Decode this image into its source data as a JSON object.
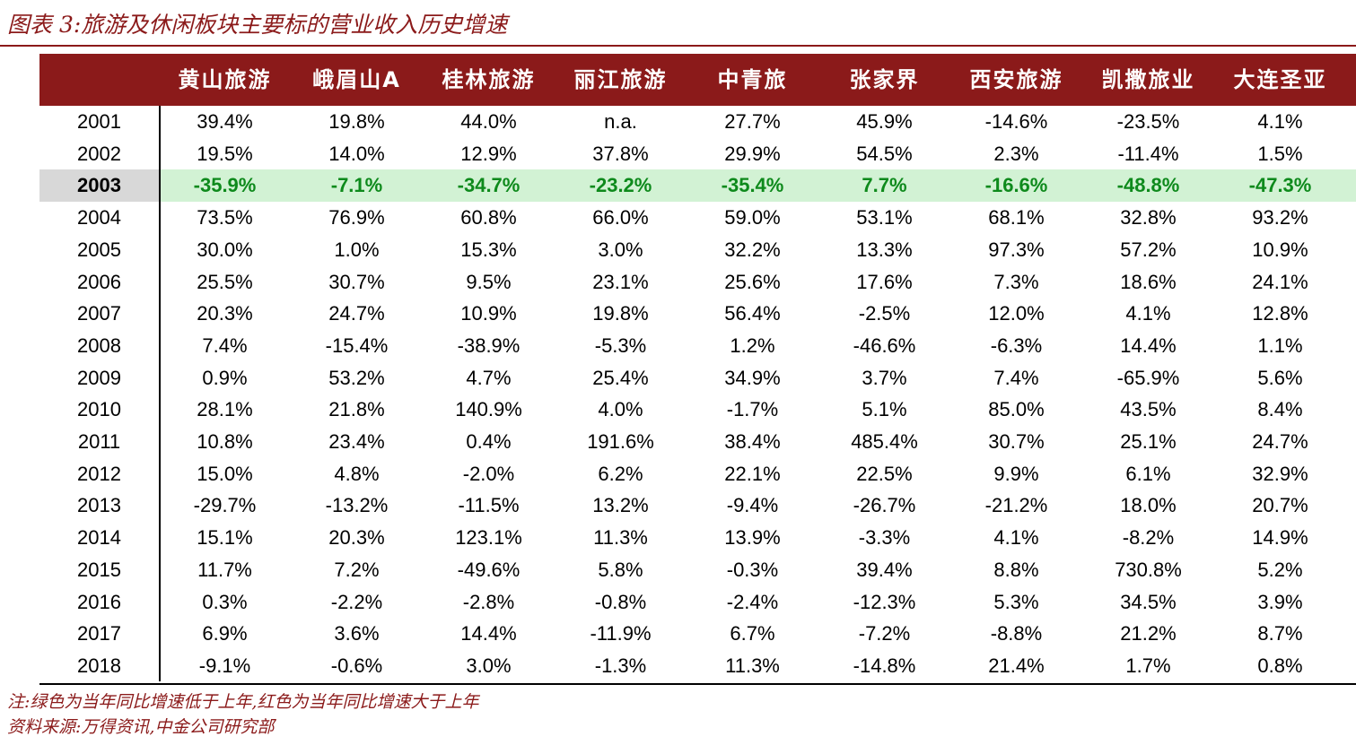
{
  "title": "图表 3:旅游及休闲板块主要标的营业收入历史增速",
  "columns": [
    "黄山旅游",
    "峨眉山A",
    "桂林旅游",
    "丽江旅游",
    "中青旅",
    "张家界",
    "西安旅游",
    "凯撒旅业",
    "大连圣亚"
  ],
  "highlight_year": "2003",
  "colors": {
    "header_bg": "#8B1A1A",
    "highlight_row": "#D2F2D4",
    "highlight_text": "#0E8A1C",
    "highlight_year_bg": "#D8D8D8"
  },
  "rows": [
    {
      "year": "2001",
      "values": [
        "39.4%",
        "19.8%",
        "44.0%",
        "n.a.",
        "27.7%",
        "45.9%",
        "-14.6%",
        "-23.5%",
        "4.1%"
      ]
    },
    {
      "year": "2002",
      "values": [
        "19.5%",
        "14.0%",
        "12.9%",
        "37.8%",
        "29.9%",
        "54.5%",
        "2.3%",
        "-11.4%",
        "1.5%"
      ]
    },
    {
      "year": "2003",
      "values": [
        "-35.9%",
        "-7.1%",
        "-34.7%",
        "-23.2%",
        "-35.4%",
        "7.7%",
        "-16.6%",
        "-48.8%",
        "-47.3%"
      ]
    },
    {
      "year": "2004",
      "values": [
        "73.5%",
        "76.9%",
        "60.8%",
        "66.0%",
        "59.0%",
        "53.1%",
        "68.1%",
        "32.8%",
        "93.2%"
      ]
    },
    {
      "year": "2005",
      "values": [
        "30.0%",
        "1.0%",
        "15.3%",
        "3.0%",
        "32.2%",
        "13.3%",
        "97.3%",
        "57.2%",
        "10.9%"
      ]
    },
    {
      "year": "2006",
      "values": [
        "25.5%",
        "30.7%",
        "9.5%",
        "23.1%",
        "25.6%",
        "17.6%",
        "7.3%",
        "18.6%",
        "24.1%"
      ]
    },
    {
      "year": "2007",
      "values": [
        "20.3%",
        "24.7%",
        "10.9%",
        "19.8%",
        "56.4%",
        "-2.5%",
        "12.0%",
        "4.1%",
        "12.8%"
      ]
    },
    {
      "year": "2008",
      "values": [
        "7.4%",
        "-15.4%",
        "-38.9%",
        "-5.3%",
        "1.2%",
        "-46.6%",
        "-6.3%",
        "14.4%",
        "1.1%"
      ]
    },
    {
      "year": "2009",
      "values": [
        "0.9%",
        "53.2%",
        "4.7%",
        "25.4%",
        "34.9%",
        "3.7%",
        "7.4%",
        "-65.9%",
        "5.6%"
      ]
    },
    {
      "year": "2010",
      "values": [
        "28.1%",
        "21.8%",
        "140.9%",
        "4.0%",
        "-1.7%",
        "5.1%",
        "85.0%",
        "43.5%",
        "8.4%"
      ]
    },
    {
      "year": "2011",
      "values": [
        "10.8%",
        "23.4%",
        "0.4%",
        "191.6%",
        "38.4%",
        "485.4%",
        "30.7%",
        "25.1%",
        "24.7%"
      ]
    },
    {
      "year": "2012",
      "values": [
        "15.0%",
        "4.8%",
        "-2.0%",
        "6.2%",
        "22.1%",
        "22.5%",
        "9.9%",
        "6.1%",
        "32.9%"
      ]
    },
    {
      "year": "2013",
      "values": [
        "-29.7%",
        "-13.2%",
        "-11.5%",
        "13.2%",
        "-9.4%",
        "-26.7%",
        "-21.2%",
        "18.0%",
        "20.7%"
      ]
    },
    {
      "year": "2014",
      "values": [
        "15.1%",
        "20.3%",
        "123.1%",
        "11.3%",
        "13.9%",
        "-3.3%",
        "4.1%",
        "-8.2%",
        "14.9%"
      ]
    },
    {
      "year": "2015",
      "values": [
        "11.7%",
        "7.2%",
        "-49.6%",
        "5.8%",
        "-0.3%",
        "39.4%",
        "8.8%",
        "730.8%",
        "5.2%"
      ]
    },
    {
      "year": "2016",
      "values": [
        "0.3%",
        "-2.2%",
        "-2.8%",
        "-0.8%",
        "-2.4%",
        "-12.3%",
        "5.3%",
        "34.5%",
        "3.9%"
      ]
    },
    {
      "year": "2017",
      "values": [
        "6.9%",
        "3.6%",
        "14.4%",
        "-11.9%",
        "6.7%",
        "-7.2%",
        "-8.8%",
        "21.2%",
        "8.7%"
      ]
    },
    {
      "year": "2018",
      "values": [
        "-9.1%",
        "-0.6%",
        "3.0%",
        "-1.3%",
        "11.3%",
        "-14.8%",
        "21.4%",
        "1.7%",
        "0.8%"
      ]
    }
  ],
  "note": "注:绿色为当年同比增速低于上年,红色为当年同比增速大于上年",
  "source": "资料来源:万得资讯,中金公司研究部"
}
